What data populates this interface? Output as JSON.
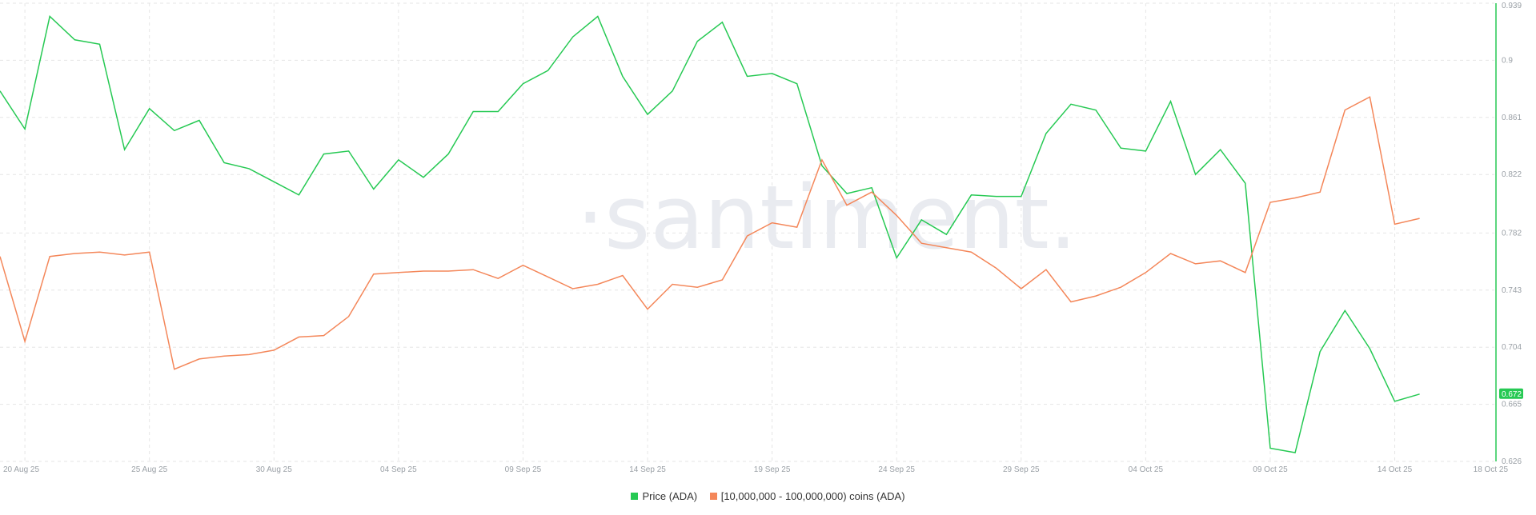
{
  "watermark": "·santiment.",
  "legend": {
    "price_label": "Price (ADA)",
    "holders_label": "[10,000,000 - 100,000,000) coins (ADA)"
  },
  "current_price_label": "0.672",
  "colors": {
    "price": "#26c953",
    "holders": "#f4875a",
    "price_badge": "#26c953",
    "grid": "#e6e6e6"
  },
  "chart_data": {
    "type": "line",
    "x_tick_labels": [
      "20 Aug 25",
      "25 Aug 25",
      "30 Aug 25",
      "04 Sep 25",
      "09 Sep 25",
      "14 Sep 25",
      "19 Sep 25",
      "24 Sep 25",
      "29 Sep 25",
      "04 Oct 25",
      "09 Oct 25",
      "14 Oct 25",
      "18 Oct 25"
    ],
    "y_tick_labels": [
      "0.939",
      "0.9",
      "0.861",
      "0.822",
      "0.782",
      "0.743",
      "0.704",
      "0.665",
      "0.626"
    ],
    "ylim": [
      0.626,
      0.939
    ],
    "x_range": [
      "2025-08-19",
      "2025-10-18"
    ],
    "grid": true,
    "legend_position": "bottom-center",
    "series": [
      {
        "name": "Price (ADA)",
        "color": "#26c953",
        "points": [
          [
            "2025-08-19",
            0.879
          ],
          [
            "2025-08-20",
            0.853
          ],
          [
            "2025-08-21",
            0.93
          ],
          [
            "2025-08-22",
            0.914
          ],
          [
            "2025-08-23",
            0.911
          ],
          [
            "2025-08-24",
            0.839
          ],
          [
            "2025-08-25",
            0.867
          ],
          [
            "2025-08-26",
            0.852
          ],
          [
            "2025-08-27",
            0.859
          ],
          [
            "2025-08-28",
            0.83
          ],
          [
            "2025-08-29",
            0.826
          ],
          [
            "2025-08-30",
            0.817
          ],
          [
            "2025-08-31",
            0.808
          ],
          [
            "2025-09-01",
            0.836
          ],
          [
            "2025-09-02",
            0.838
          ],
          [
            "2025-09-03",
            0.812
          ],
          [
            "2025-09-04",
            0.832
          ],
          [
            "2025-09-05",
            0.82
          ],
          [
            "2025-09-06",
            0.836
          ],
          [
            "2025-09-07",
            0.865
          ],
          [
            "2025-09-08",
            0.865
          ],
          [
            "2025-09-09",
            0.884
          ],
          [
            "2025-09-10",
            0.893
          ],
          [
            "2025-09-11",
            0.916
          ],
          [
            "2025-09-12",
            0.93
          ],
          [
            "2025-09-13",
            0.889
          ],
          [
            "2025-09-14",
            0.863
          ],
          [
            "2025-09-15",
            0.879
          ],
          [
            "2025-09-16",
            0.913
          ],
          [
            "2025-09-17",
            0.926
          ],
          [
            "2025-09-18",
            0.889
          ],
          [
            "2025-09-19",
            0.891
          ],
          [
            "2025-09-20",
            0.884
          ],
          [
            "2025-09-21",
            0.828
          ],
          [
            "2025-09-22",
            0.809
          ],
          [
            "2025-09-23",
            0.813
          ],
          [
            "2025-09-24",
            0.765
          ],
          [
            "2025-09-25",
            0.791
          ],
          [
            "2025-09-26",
            0.781
          ],
          [
            "2025-09-27",
            0.808
          ],
          [
            "2025-09-28",
            0.807
          ],
          [
            "2025-09-29",
            0.807
          ],
          [
            "2025-09-30",
            0.85
          ],
          [
            "2025-10-01",
            0.87
          ],
          [
            "2025-10-02",
            0.866
          ],
          [
            "2025-10-03",
            0.84
          ],
          [
            "2025-10-04",
            0.838
          ],
          [
            "2025-10-05",
            0.872
          ],
          [
            "2025-10-06",
            0.822
          ],
          [
            "2025-10-07",
            0.839
          ],
          [
            "2025-10-08",
            0.816
          ],
          [
            "2025-10-09",
            0.635
          ],
          [
            "2025-10-10",
            0.632
          ],
          [
            "2025-10-11",
            0.701
          ],
          [
            "2025-10-12",
            0.729
          ],
          [
            "2025-10-13",
            0.703
          ],
          [
            "2025-10-14",
            0.667
          ],
          [
            "2025-10-15",
            0.672
          ]
        ]
      },
      {
        "name": "[10,000,000 - 100,000,000) coins (ADA)",
        "color": "#f4875a",
        "points": [
          [
            "2025-08-19",
            0.766
          ],
          [
            "2025-08-20",
            0.708
          ],
          [
            "2025-08-21",
            0.766
          ],
          [
            "2025-08-22",
            0.768
          ],
          [
            "2025-08-23",
            0.769
          ],
          [
            "2025-08-24",
            0.767
          ],
          [
            "2025-08-25",
            0.769
          ],
          [
            "2025-08-26",
            0.689
          ],
          [
            "2025-08-27",
            0.696
          ],
          [
            "2025-08-28",
            0.698
          ],
          [
            "2025-08-29",
            0.699
          ],
          [
            "2025-08-30",
            0.702
          ],
          [
            "2025-08-31",
            0.711
          ],
          [
            "2025-09-01",
            0.712
          ],
          [
            "2025-09-02",
            0.725
          ],
          [
            "2025-09-03",
            0.754
          ],
          [
            "2025-09-04",
            0.755
          ],
          [
            "2025-09-05",
            0.756
          ],
          [
            "2025-09-06",
            0.756
          ],
          [
            "2025-09-07",
            0.757
          ],
          [
            "2025-09-08",
            0.751
          ],
          [
            "2025-09-09",
            0.76
          ],
          [
            "2025-09-10",
            0.752
          ],
          [
            "2025-09-11",
            0.744
          ],
          [
            "2025-09-12",
            0.747
          ],
          [
            "2025-09-13",
            0.753
          ],
          [
            "2025-09-14",
            0.73
          ],
          [
            "2025-09-15",
            0.747
          ],
          [
            "2025-09-16",
            0.745
          ],
          [
            "2025-09-17",
            0.75
          ],
          [
            "2025-09-18",
            0.78
          ],
          [
            "2025-09-19",
            0.789
          ],
          [
            "2025-09-20",
            0.786
          ],
          [
            "2025-09-21",
            0.832
          ],
          [
            "2025-09-22",
            0.801
          ],
          [
            "2025-09-23",
            0.81
          ],
          [
            "2025-09-24",
            0.794
          ],
          [
            "2025-09-25",
            0.775
          ],
          [
            "2025-09-26",
            0.772
          ],
          [
            "2025-09-27",
            0.769
          ],
          [
            "2025-09-28",
            0.758
          ],
          [
            "2025-09-29",
            0.744
          ],
          [
            "2025-09-30",
            0.757
          ],
          [
            "2025-10-01",
            0.735
          ],
          [
            "2025-10-02",
            0.739
          ],
          [
            "2025-10-03",
            0.745
          ],
          [
            "2025-10-04",
            0.755
          ],
          [
            "2025-10-05",
            0.768
          ],
          [
            "2025-10-06",
            0.761
          ],
          [
            "2025-10-07",
            0.763
          ],
          [
            "2025-10-08",
            0.755
          ],
          [
            "2025-10-09",
            0.803
          ],
          [
            "2025-10-10",
            0.806
          ],
          [
            "2025-10-11",
            0.81
          ],
          [
            "2025-10-12",
            0.866
          ],
          [
            "2025-10-13",
            0.875
          ],
          [
            "2025-10-14",
            0.788
          ],
          [
            "2025-10-15",
            0.792
          ]
        ]
      }
    ]
  }
}
